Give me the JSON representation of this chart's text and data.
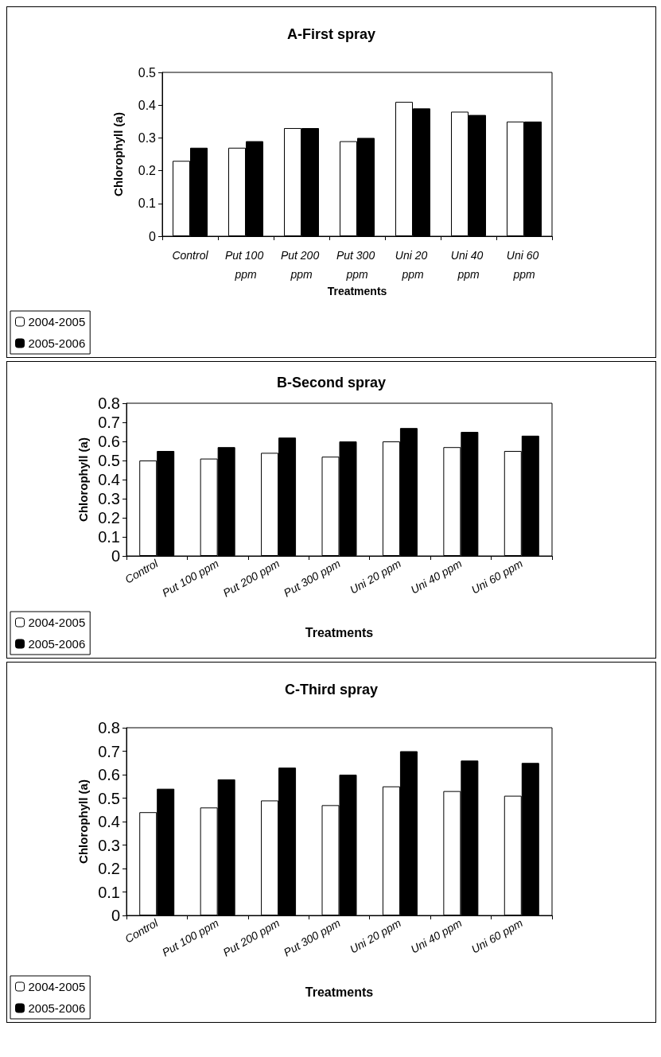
{
  "chart_data": [
    {
      "type": "bar",
      "title": "A-First spray",
      "xlabel": "Treatments",
      "ylabel": "Chlorophyll (a)",
      "categories": [
        "Control",
        "Put 100 ppm",
        "Put 200 ppm",
        "Put 300 ppm",
        "Uni 20 ppm",
        "Uni 40 ppm",
        "Uni 60 ppm"
      ],
      "series": [
        {
          "name": "2004-2005",
          "color": "#ffffff",
          "values": [
            0.23,
            0.27,
            0.33,
            0.29,
            0.41,
            0.38,
            0.35
          ]
        },
        {
          "name": "2005-2006",
          "color": "#000000",
          "values": [
            0.27,
            0.29,
            0.33,
            0.3,
            0.39,
            0.37,
            0.35
          ]
        }
      ],
      "ylim": [
        0,
        0.5
      ],
      "yticks": [
        0,
        0.1,
        0.2,
        0.3,
        0.4,
        0.5
      ],
      "grid": false,
      "legend": "bottom left"
    },
    {
      "type": "bar",
      "title": "B-Second spray",
      "xlabel": "Treatments",
      "ylabel": "Chlorophyll (a)",
      "categories": [
        "Control",
        "Put 100 ppm",
        "Put 200 ppm",
        "Put 300 ppm",
        "Uni 20 ppm",
        "Uni 40 ppm",
        "Uni 60 ppm"
      ],
      "series": [
        {
          "name": "2004-2005",
          "color": "#ffffff",
          "values": [
            0.5,
            0.51,
            0.54,
            0.52,
            0.6,
            0.57,
            0.55
          ]
        },
        {
          "name": "2005-2006",
          "color": "#000000",
          "values": [
            0.55,
            0.57,
            0.62,
            0.6,
            0.67,
            0.65,
            0.63
          ]
        }
      ],
      "ylim": [
        0,
        0.8
      ],
      "yticks": [
        0,
        0.1,
        0.2,
        0.3,
        0.4,
        0.5,
        0.6,
        0.7,
        0.8
      ],
      "grid": false,
      "legend": "bottom left"
    },
    {
      "type": "bar",
      "title": "C-Third spray",
      "xlabel": "Treatments",
      "ylabel": "Chlorophyll (a)",
      "categories": [
        "Control",
        "Put 100 ppm",
        "Put 200 ppm",
        "Put 300 ppm",
        "Uni 20 ppm",
        "Uni 40 ppm",
        "Uni 60 ppm"
      ],
      "series": [
        {
          "name": "2004-2005",
          "color": "#ffffff",
          "values": [
            0.44,
            0.46,
            0.49,
            0.47,
            0.55,
            0.53,
            0.51
          ]
        },
        {
          "name": "2005-2006",
          "color": "#000000",
          "values": [
            0.54,
            0.58,
            0.63,
            0.6,
            0.7,
            0.66,
            0.65
          ]
        }
      ],
      "ylim": [
        0,
        0.8
      ],
      "yticks": [
        0,
        0.1,
        0.2,
        0.3,
        0.4,
        0.5,
        0.6,
        0.7,
        0.8
      ],
      "grid": false,
      "legend": "bottom left"
    }
  ]
}
